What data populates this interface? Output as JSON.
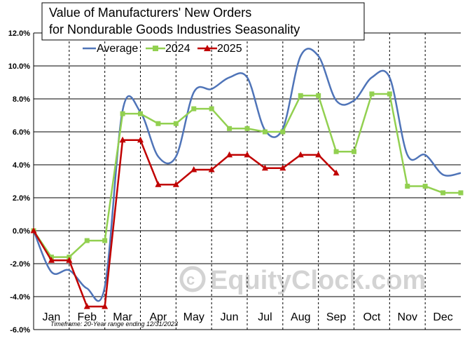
{
  "chart_data": {
    "type": "line",
    "title_lines": [
      "Value of Manufacturers'  New Orders",
      "for Nondurable  Goods Industries Seasonality"
    ],
    "categories": [
      "Jan",
      "Feb",
      "Mar",
      "Apr",
      "May",
      "Jun",
      "Jul",
      "Aug",
      "Sep",
      "Oct",
      "Nov",
      "Dec"
    ],
    "y_ticks": [
      "-6.0%",
      "-4.0%",
      "-2.0%",
      "0.0%",
      "2.0%",
      "4.0%",
      "6.0%",
      "8.0%",
      "10.0%",
      "12.0%"
    ],
    "ylim": [
      -6,
      12
    ],
    "grid": {
      "horizontal": true,
      "vertical_dashed": true
    },
    "legend_position": "top",
    "footnote": "Timeframe: 20-Year range ending 12/31/2023",
    "watermark": "EquityClock.com",
    "series": [
      {
        "name": "Average",
        "color": "#4f74b8",
        "marker": "none",
        "smooth": true,
        "x": [
          0.0,
          0.5,
          1.0,
          1.5,
          2.0,
          2.5,
          3.0,
          3.5,
          4.0,
          4.5,
          5.0,
          5.5,
          6.0,
          6.5,
          7.0,
          7.5,
          8.0,
          8.5,
          9.0,
          9.5,
          10.0,
          10.5,
          11.0,
          11.5,
          12.0
        ],
        "values": [
          0.0,
          -2.5,
          -2.4,
          -3.5,
          -3.4,
          7.3,
          7.2,
          4.5,
          4.5,
          8.4,
          8.6,
          9.3,
          9.3,
          6.1,
          6.2,
          10.6,
          10.6,
          7.9,
          7.9,
          9.3,
          9.3,
          4.6,
          4.6,
          3.4,
          3.5
        ]
      },
      {
        "name": "2024",
        "color": "#92d050",
        "marker": "square",
        "smooth": false,
        "x": [
          0.0,
          0.5,
          1.0,
          1.5,
          2.0,
          2.5,
          3.0,
          3.5,
          4.0,
          4.5,
          5.0,
          5.5,
          6.0,
          6.5,
          7.0,
          7.5,
          8.0,
          8.5,
          9.0,
          9.5,
          10.0,
          10.5,
          11.0,
          11.5,
          12.0
        ],
        "values": [
          0.0,
          -1.6,
          -1.6,
          -0.6,
          -0.6,
          7.1,
          7.1,
          6.5,
          6.5,
          7.4,
          7.4,
          6.2,
          6.2,
          6.0,
          6.0,
          8.2,
          8.2,
          4.8,
          4.8,
          8.3,
          8.3,
          2.7,
          2.7,
          2.3,
          2.3
        ]
      },
      {
        "name": "2025",
        "color": "#c00000",
        "marker": "triangle",
        "smooth": false,
        "x": [
          0.0,
          0.5,
          1.0,
          1.5,
          2.0,
          2.5,
          3.0,
          3.5,
          4.0,
          4.5,
          5.0,
          5.5,
          6.0,
          6.5,
          7.0,
          7.5,
          8.0,
          8.5
        ],
        "values": [
          0.0,
          -1.8,
          -1.8,
          -4.6,
          -4.6,
          5.5,
          5.5,
          2.8,
          2.8,
          3.7,
          3.7,
          4.6,
          4.6,
          3.8,
          3.8,
          4.6,
          4.6,
          3.5
        ]
      }
    ]
  }
}
